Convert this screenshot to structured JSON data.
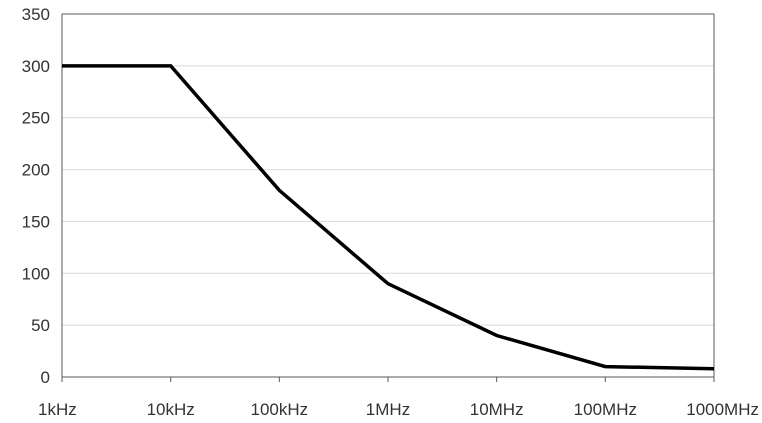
{
  "chart_data": {
    "type": "line",
    "categories": [
      "1kHz",
      "10kHz",
      "100kHz",
      "1MHz",
      "10MHz",
      "100MHz",
      "1000MHz"
    ],
    "series": [
      {
        "values": [
          300,
          300,
          180,
          90,
          40,
          10,
          8
        ]
      }
    ],
    "y_ticks": [
      "0",
      "50",
      "100",
      "150",
      "200",
      "250",
      "300",
      "350"
    ],
    "ylim": [
      0,
      350
    ],
    "grid": true,
    "line_color": "#000000",
    "grid_color": "#d9d9d9",
    "axis_color": "#595959"
  }
}
